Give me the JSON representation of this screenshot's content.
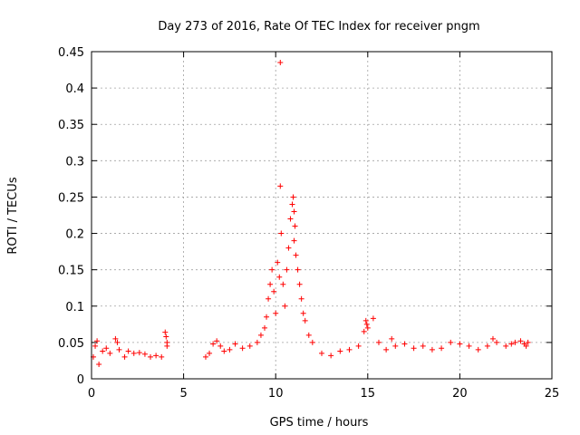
{
  "chart_data": {
    "type": "scatter",
    "title": "Day 273 of 2016, Rate Of TEC Index for receiver pngm",
    "xlabel": "GPS time / hours",
    "ylabel": "ROTI / TECUs",
    "xlim": [
      0,
      25
    ],
    "ylim": [
      0,
      0.45
    ],
    "x_ticks": [
      "0",
      "5",
      "10",
      "15",
      "20",
      "25"
    ],
    "y_ticks": [
      "0",
      "0.05",
      "0.1",
      "0.15",
      "0.2",
      "0.25",
      "0.3",
      "0.35",
      "0.4",
      "0.45"
    ],
    "grid": true,
    "marker": "+",
    "series_color": "#ff0000",
    "series": [
      {
        "name": "ROTI",
        "note_segments": "data coverage 0.0-4.2 h and 6.1-23.8 h; no data 4.2-6.1 h",
        "points": [
          [
            0.1,
            0.03
          ],
          [
            0.2,
            0.045
          ],
          [
            0.3,
            0.052
          ],
          [
            0.4,
            0.02
          ],
          [
            0.6,
            0.038
          ],
          [
            0.8,
            0.042
          ],
          [
            1.0,
            0.035
          ],
          [
            1.3,
            0.055
          ],
          [
            1.4,
            0.05
          ],
          [
            1.5,
            0.04
          ],
          [
            1.8,
            0.03
          ],
          [
            2.0,
            0.038
          ],
          [
            2.3,
            0.035
          ],
          [
            2.6,
            0.036
          ],
          [
            2.9,
            0.034
          ],
          [
            3.2,
            0.03
          ],
          [
            3.5,
            0.032
          ],
          [
            3.8,
            0.03
          ],
          [
            4.0,
            0.064
          ],
          [
            4.05,
            0.058
          ],
          [
            4.1,
            0.05
          ],
          [
            4.1,
            0.045
          ],
          [
            6.2,
            0.03
          ],
          [
            6.4,
            0.035
          ],
          [
            6.6,
            0.048
          ],
          [
            6.8,
            0.052
          ],
          [
            7.0,
            0.045
          ],
          [
            7.2,
            0.038
          ],
          [
            7.5,
            0.04
          ],
          [
            7.8,
            0.048
          ],
          [
            8.2,
            0.042
          ],
          [
            8.6,
            0.045
          ],
          [
            9.0,
            0.05
          ],
          [
            9.2,
            0.06
          ],
          [
            9.4,
            0.07
          ],
          [
            9.5,
            0.085
          ],
          [
            9.6,
            0.11
          ],
          [
            9.7,
            0.13
          ],
          [
            9.8,
            0.15
          ],
          [
            9.9,
            0.12
          ],
          [
            10.0,
            0.09
          ],
          [
            10.1,
            0.16
          ],
          [
            10.2,
            0.14
          ],
          [
            10.25,
            0.435
          ],
          [
            10.25,
            0.265
          ],
          [
            10.3,
            0.2
          ],
          [
            10.4,
            0.13
          ],
          [
            10.5,
            0.1
          ],
          [
            10.6,
            0.15
          ],
          [
            10.7,
            0.18
          ],
          [
            10.8,
            0.22
          ],
          [
            10.9,
            0.24
          ],
          [
            10.95,
            0.25
          ],
          [
            11.0,
            0.23
          ],
          [
            11.0,
            0.19
          ],
          [
            11.05,
            0.21
          ],
          [
            11.1,
            0.17
          ],
          [
            11.2,
            0.15
          ],
          [
            11.3,
            0.13
          ],
          [
            11.4,
            0.11
          ],
          [
            11.5,
            0.09
          ],
          [
            11.6,
            0.08
          ],
          [
            11.8,
            0.06
          ],
          [
            12.0,
            0.05
          ],
          [
            12.5,
            0.035
          ],
          [
            13.0,
            0.032
          ],
          [
            13.5,
            0.038
          ],
          [
            14.0,
            0.04
          ],
          [
            14.5,
            0.045
          ],
          [
            14.8,
            0.065
          ],
          [
            14.9,
            0.08
          ],
          [
            14.95,
            0.075
          ],
          [
            15.0,
            0.07
          ],
          [
            15.3,
            0.083
          ],
          [
            15.6,
            0.05
          ],
          [
            16.0,
            0.04
          ],
          [
            16.3,
            0.055
          ],
          [
            16.5,
            0.045
          ],
          [
            17.0,
            0.048
          ],
          [
            17.5,
            0.042
          ],
          [
            18.0,
            0.045
          ],
          [
            18.5,
            0.04
          ],
          [
            19.0,
            0.042
          ],
          [
            19.5,
            0.05
          ],
          [
            20.0,
            0.048
          ],
          [
            20.5,
            0.045
          ],
          [
            21.0,
            0.04
          ],
          [
            21.5,
            0.045
          ],
          [
            21.8,
            0.055
          ],
          [
            22.0,
            0.05
          ],
          [
            22.5,
            0.045
          ],
          [
            22.8,
            0.048
          ],
          [
            23.0,
            0.05
          ],
          [
            23.3,
            0.052
          ],
          [
            23.5,
            0.048
          ],
          [
            23.6,
            0.045
          ],
          [
            23.7,
            0.05
          ]
        ]
      }
    ]
  }
}
